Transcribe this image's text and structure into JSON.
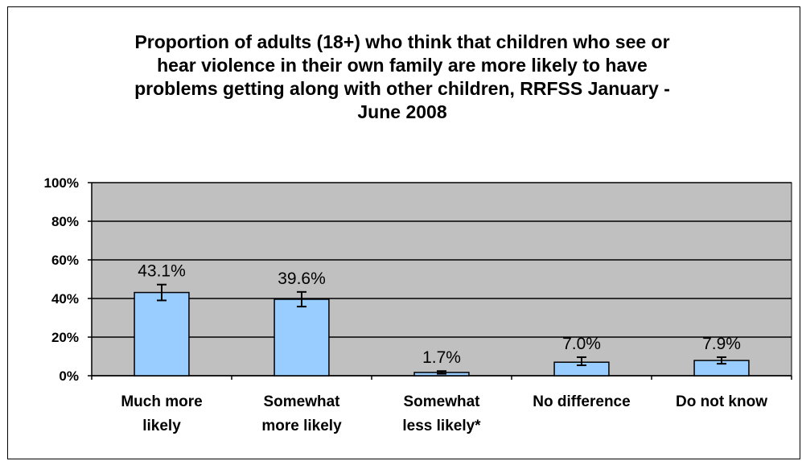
{
  "chart_data": {
    "type": "bar",
    "title": "Proportion of adults (18+) who think that children who see or\nhear violence in their own family are more likely to have\nproblems getting along with other children, RRFSS January -\nJune 2008",
    "categories": [
      [
        "Much more",
        "likely"
      ],
      [
        "Somewhat",
        "more likely"
      ],
      [
        "Somewhat",
        "less likely*"
      ],
      [
        "No difference"
      ],
      [
        "Do not know"
      ]
    ],
    "values": [
      43.1,
      39.6,
      1.7,
      7.0,
      7.9
    ],
    "data_labels": [
      "43.1%",
      "39.6%",
      "1.7%",
      "7.0%",
      "7.9%"
    ],
    "error_bars": [
      [
        39.0,
        47.2
      ],
      [
        35.8,
        43.4
      ],
      [
        1.0,
        2.4
      ],
      [
        5.4,
        9.6
      ],
      [
        6.2,
        9.6
      ]
    ],
    "yticks": [
      "0%",
      "20%",
      "40%",
      "60%",
      "80%",
      "100%"
    ],
    "ylim": [
      0,
      100
    ],
    "grid": true,
    "colors": {
      "bar": "#99ccff",
      "plot_bg": "#c0c0c0",
      "border": "#000000"
    }
  }
}
